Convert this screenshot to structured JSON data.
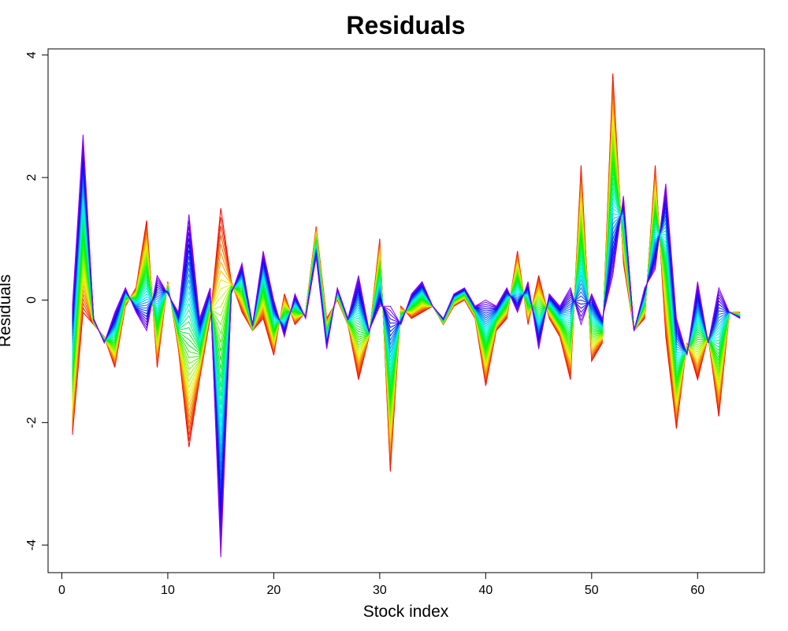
{
  "chart_data": {
    "type": "line",
    "title": "Residuals",
    "xlabel": "Stock index",
    "ylabel": "Residuals",
    "xlim": [
      -1.3,
      66.3
    ],
    "ylim": [
      -4.45,
      4.1
    ],
    "xticks": [
      0,
      10,
      20,
      30,
      40,
      50,
      60
    ],
    "xtick_labels": [
      "0",
      "10",
      "20",
      "30",
      "40",
      "50",
      "60"
    ],
    "yticks": [
      -4,
      -2,
      0,
      2,
      4
    ],
    "ytick_labels": [
      "-4",
      "-2",
      "0",
      "2",
      "4"
    ],
    "x": [
      1,
      2,
      3,
      4,
      5,
      6,
      7,
      8,
      9,
      10,
      11,
      12,
      13,
      14,
      15,
      16,
      17,
      18,
      19,
      20,
      21,
      22,
      23,
      24,
      25,
      26,
      27,
      28,
      29,
      30,
      31,
      32,
      33,
      34,
      35,
      36,
      37,
      38,
      39,
      40,
      41,
      42,
      43,
      44,
      45,
      46,
      47,
      48,
      49,
      50,
      51,
      52,
      53,
      54,
      55,
      56,
      57,
      58,
      59,
      60,
      61,
      62,
      63,
      64
    ],
    "series_count": 40,
    "color_scale": "rainbow (red to violet)",
    "series_start": {
      "name": "first",
      "color": "#ff0000",
      "values": [
        -2.2,
        -0.2,
        -0.4,
        -0.6,
        -1.1,
        -0.1,
        0.2,
        1.3,
        -1.1,
        0.3,
        -0.8,
        -2.4,
        -1.3,
        -0.3,
        1.5,
        0.3,
        -0.2,
        -0.5,
        -0.3,
        -0.9,
        0.1,
        -0.4,
        -0.2,
        1.2,
        -0.3,
        0.0,
        -0.4,
        -1.3,
        -0.6,
        1.0,
        -2.8,
        -0.1,
        -0.3,
        -0.2,
        -0.1,
        -0.4,
        -0.1,
        0.0,
        -0.3,
        -1.4,
        -0.5,
        -0.3,
        0.8,
        -0.4,
        0.4,
        -0.3,
        -0.6,
        -1.3,
        2.2,
        -1.0,
        -0.7,
        3.7,
        0.6,
        -0.5,
        -0.3,
        2.2,
        -0.6,
        -2.1,
        -0.7,
        -1.3,
        -0.6,
        -1.9,
        -0.2,
        -0.2
      ]
    },
    "series_end": {
      "name": "last",
      "color": "#9400ff",
      "values": [
        -0.1,
        2.7,
        -0.3,
        -0.7,
        -0.2,
        0.2,
        -0.2,
        -0.5,
        0.4,
        0.1,
        -0.2,
        1.4,
        -0.3,
        0.2,
        -4.2,
        0.1,
        0.6,
        -0.4,
        0.8,
        0.0,
        -0.6,
        0.1,
        -0.3,
        0.7,
        -0.8,
        0.2,
        -0.3,
        0.4,
        -0.5,
        -0.1,
        -0.1,
        -0.4,
        0.1,
        0.3,
        -0.1,
        -0.3,
        0.1,
        0.2,
        -0.1,
        0.0,
        -0.1,
        0.2,
        -0.2,
        0.3,
        -0.8,
        0.1,
        -0.1,
        0.2,
        -0.4,
        0.1,
        -0.3,
        0.4,
        1.7,
        -0.5,
        0.2,
        0.5,
        1.9,
        -0.3,
        -0.9,
        0.3,
        -0.7,
        0.2,
        -0.2,
        -0.3
      ]
    }
  }
}
